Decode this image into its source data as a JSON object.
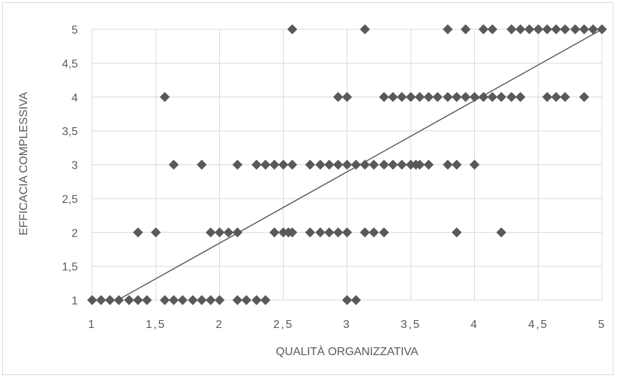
{
  "chart_data": {
    "type": "scatter",
    "title": "",
    "xlabel": "QUALITÀ ORGANIZZATIVA",
    "ylabel": "EFFICACIA COMPLESSIVA",
    "xlim": [
      1,
      5
    ],
    "ylim": [
      1,
      5
    ],
    "x_ticks": [
      "1",
      "1,5",
      "2",
      "2,5",
      "3",
      "3,5",
      "4",
      "4,5",
      "5"
    ],
    "y_ticks": [
      "1",
      "1,5",
      "2",
      "2,5",
      "3",
      "3,5",
      "4",
      "4,5",
      "5"
    ],
    "grid": true,
    "marker": "diamond",
    "colors": {
      "marker": "#595959",
      "grid": "#d9d9d9",
      "trendline": "#595959",
      "text": "#595959"
    },
    "trendline": {
      "x": [
        1.2,
        5.0
      ],
      "y": [
        1.0,
        5.0
      ]
    },
    "points": [
      [
        1.0,
        1
      ],
      [
        1.07,
        1
      ],
      [
        1.14,
        1
      ],
      [
        1.21,
        1
      ],
      [
        1.29,
        1
      ],
      [
        1.36,
        1
      ],
      [
        1.43,
        1
      ],
      [
        1.57,
        1
      ],
      [
        1.64,
        1
      ],
      [
        1.71,
        1
      ],
      [
        1.79,
        1
      ],
      [
        1.86,
        1
      ],
      [
        1.93,
        1
      ],
      [
        2.0,
        1
      ],
      [
        2.14,
        1
      ],
      [
        2.21,
        1
      ],
      [
        2.29,
        1
      ],
      [
        2.36,
        1
      ],
      [
        3.0,
        1
      ],
      [
        3.07,
        1
      ],
      [
        1.36,
        2
      ],
      [
        1.5,
        2
      ],
      [
        1.93,
        2
      ],
      [
        2.0,
        2
      ],
      [
        2.07,
        2
      ],
      [
        2.14,
        2
      ],
      [
        2.43,
        2
      ],
      [
        2.5,
        2
      ],
      [
        2.54,
        2
      ],
      [
        2.57,
        2
      ],
      [
        2.71,
        2
      ],
      [
        2.79,
        2
      ],
      [
        2.86,
        2
      ],
      [
        2.93,
        2
      ],
      [
        3.0,
        2
      ],
      [
        3.14,
        2
      ],
      [
        3.21,
        2
      ],
      [
        3.29,
        2
      ],
      [
        3.86,
        2
      ],
      [
        4.21,
        2
      ],
      [
        1.64,
        3
      ],
      [
        1.86,
        3
      ],
      [
        2.14,
        3
      ],
      [
        2.29,
        3
      ],
      [
        2.36,
        3
      ],
      [
        2.43,
        3
      ],
      [
        2.5,
        3
      ],
      [
        2.57,
        3
      ],
      [
        2.71,
        3
      ],
      [
        2.79,
        3
      ],
      [
        2.86,
        3
      ],
      [
        2.93,
        3
      ],
      [
        3.0,
        3
      ],
      [
        3.07,
        3
      ],
      [
        3.14,
        3
      ],
      [
        3.21,
        3
      ],
      [
        3.29,
        3
      ],
      [
        3.36,
        3
      ],
      [
        3.43,
        3
      ],
      [
        3.5,
        3
      ],
      [
        3.54,
        3
      ],
      [
        3.57,
        3
      ],
      [
        3.64,
        3
      ],
      [
        3.79,
        3
      ],
      [
        3.86,
        3
      ],
      [
        4.0,
        3
      ],
      [
        1.57,
        4
      ],
      [
        2.93,
        4
      ],
      [
        3.0,
        4
      ],
      [
        3.29,
        4
      ],
      [
        3.36,
        4
      ],
      [
        3.43,
        4
      ],
      [
        3.5,
        4
      ],
      [
        3.57,
        4
      ],
      [
        3.64,
        4
      ],
      [
        3.71,
        4
      ],
      [
        3.79,
        4
      ],
      [
        3.86,
        4
      ],
      [
        3.93,
        4
      ],
      [
        4.0,
        4
      ],
      [
        4.07,
        4
      ],
      [
        4.14,
        4
      ],
      [
        4.21,
        4
      ],
      [
        4.29,
        4
      ],
      [
        4.36,
        4
      ],
      [
        4.57,
        4
      ],
      [
        4.64,
        4
      ],
      [
        4.71,
        4
      ],
      [
        4.86,
        4
      ],
      [
        2.57,
        5
      ],
      [
        3.14,
        5
      ],
      [
        3.79,
        5
      ],
      [
        3.93,
        5
      ],
      [
        4.07,
        5
      ],
      [
        4.14,
        5
      ],
      [
        4.29,
        5
      ],
      [
        4.36,
        5
      ],
      [
        4.43,
        5
      ],
      [
        4.5,
        5
      ],
      [
        4.57,
        5
      ],
      [
        4.64,
        5
      ],
      [
        4.71,
        5
      ],
      [
        4.79,
        5
      ],
      [
        4.86,
        5
      ],
      [
        4.93,
        5
      ],
      [
        5.0,
        5
      ]
    ]
  }
}
